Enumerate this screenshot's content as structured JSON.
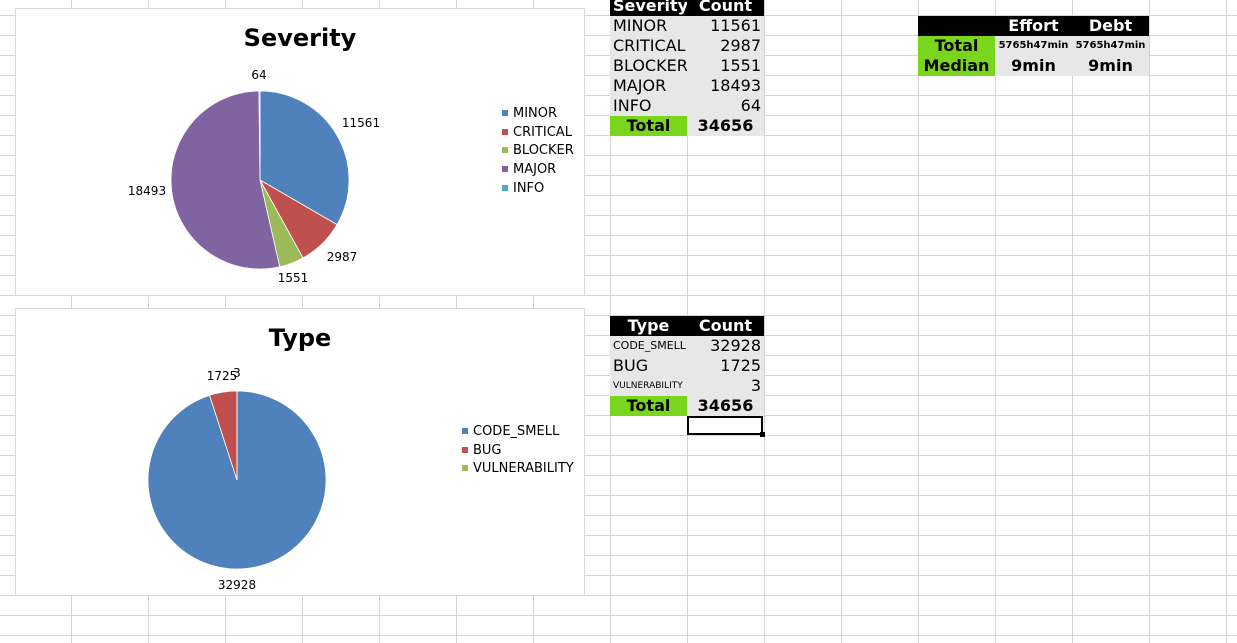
{
  "charts": {
    "severity": {
      "title": "Severity",
      "legend": [
        "MINOR",
        "CRITICAL",
        "BLOCKER",
        "MAJOR",
        "INFO"
      ]
    },
    "type": {
      "title": "Type",
      "legend": [
        "CODE_SMELL",
        "BUG",
        "VULNERABILITY"
      ]
    }
  },
  "chart_data": [
    {
      "type": "pie",
      "title": "Severity",
      "categories": [
        "MINOR",
        "CRITICAL",
        "BLOCKER",
        "MAJOR",
        "INFO"
      ],
      "values": [
        11561,
        2987,
        1551,
        18493,
        64
      ],
      "colors": [
        "#4f81bd",
        "#c0504d",
        "#9bbb59",
        "#8064a2",
        "#4bacc6"
      ],
      "legend": "right"
    },
    {
      "type": "pie",
      "title": "Type",
      "categories": [
        "CODE_SMELL",
        "BUG",
        "VULNERABILITY"
      ],
      "values": [
        32928,
        1725,
        3
      ],
      "colors": [
        "#4f81bd",
        "#c0504d",
        "#9bbb59"
      ],
      "legend": "right"
    }
  ],
  "severity_table": {
    "headers": [
      "Severity",
      "Count"
    ],
    "rows": [
      {
        "label": "MINOR",
        "value": "11561"
      },
      {
        "label": "CRITICAL",
        "value": "2987"
      },
      {
        "label": "BLOCKER",
        "value": "1551"
      },
      {
        "label": "MAJOR",
        "value": "18493"
      },
      {
        "label": "INFO",
        "value": "64"
      }
    ],
    "total_label": "Total",
    "total_value": "34656"
  },
  "type_table": {
    "headers": [
      "Type",
      "Count"
    ],
    "rows": [
      {
        "label": "CODE_SMELL",
        "value": "32928"
      },
      {
        "label": "BUG",
        "value": "1725"
      },
      {
        "label": "VULNERABILITY",
        "value": "3"
      }
    ],
    "total_label": "Total",
    "total_value": "34656"
  },
  "effort_table": {
    "headers": [
      "",
      "Effort",
      "Debt"
    ],
    "total": {
      "label": "Total",
      "effort": "5765h47min",
      "debt": "5765h47min"
    },
    "median": {
      "label": "Median",
      "effort": "9min",
      "debt": "9min"
    }
  }
}
